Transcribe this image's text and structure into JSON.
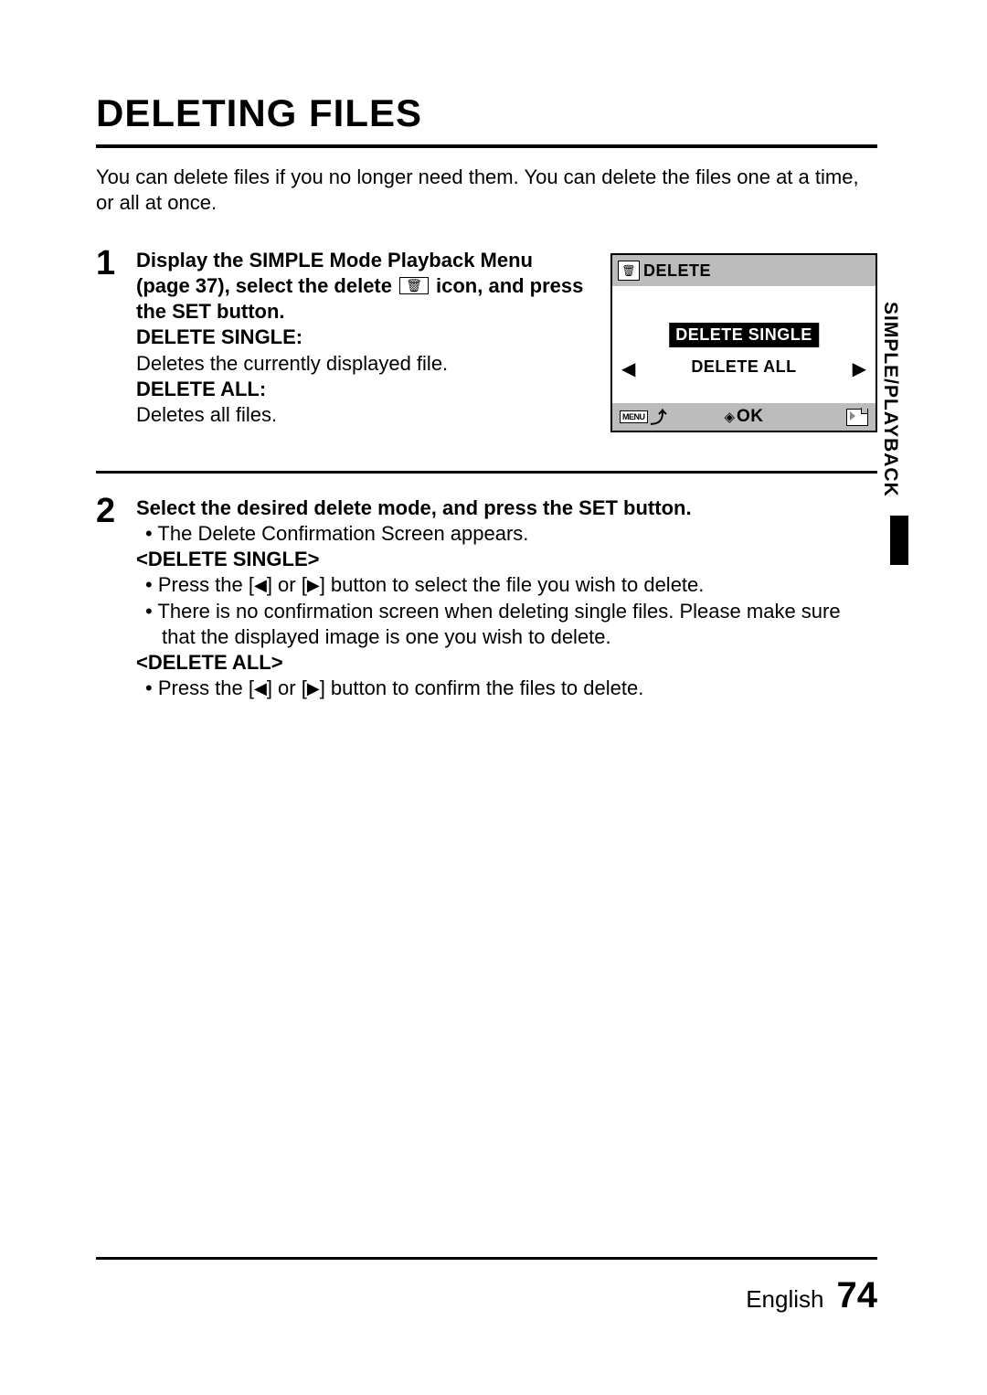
{
  "page_title": "DELETING FILES",
  "intro_text": "You can delete files if you no longer need them. You can delete the files one at a time, or all at once.",
  "section_tab": "SIMPLE/PLAYBACK",
  "step1": {
    "lead": "Display the SIMPLE Mode Playback Menu (page 37), select the delete ",
    "lead_after": " icon, and press the SET button.",
    "opt1_label": "DELETE SINGLE:",
    "opt1_desc": "Deletes the currently displayed file.",
    "opt2_label": "DELETE ALL:",
    "opt2_desc": "Deletes all files."
  },
  "lcd": {
    "title": "DELETE",
    "option_selected": "DELETE SINGLE",
    "option_other": "DELETE ALL",
    "menu_label": "MENU",
    "ok_label": "OK"
  },
  "step2": {
    "lead": "Select the desired delete mode, and press the SET button.",
    "bullet0": "The Delete Confirmation Screen appears.",
    "hdr_single": "<DELETE SINGLE>",
    "single_b1a": "Press the [",
    "single_b1b": "] or [",
    "single_b1c": "] button to select the file you wish to delete.",
    "single_b2": "There is no confirmation screen when deleting single files. Please make sure that the displayed image is one you wish to delete.",
    "hdr_all": "<DELETE ALL>",
    "all_b1a": "Press the [",
    "all_b1b": "] or [",
    "all_b1c": "] button to confirm the files to delete."
  },
  "footer": {
    "language": "English",
    "page_no": "74"
  }
}
